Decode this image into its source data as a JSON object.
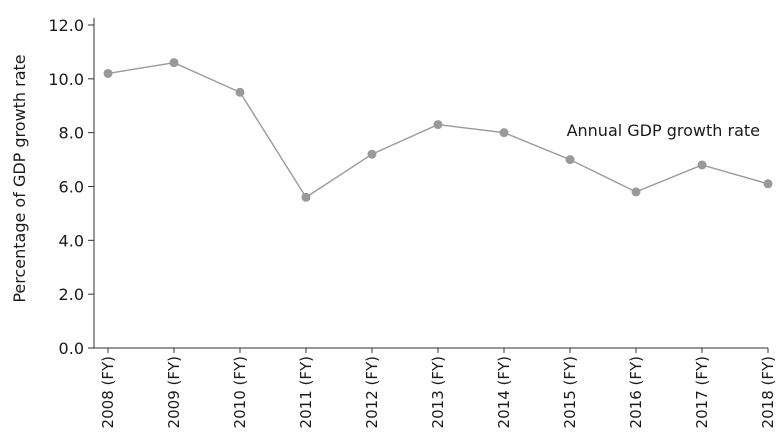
{
  "chart_data": {
    "type": "line",
    "title": "",
    "xlabel": "",
    "ylabel": "Percentage of GDP growth rate",
    "categories": [
      "2008 (FY)",
      "2009 (FY)",
      "2010 (FY)",
      "2011 (FY)",
      "2012 (FY)",
      "2013 (FY)",
      "2014 (FY)",
      "2015 (FY)",
      "2016 (FY)",
      "2017 (FY)",
      "2018 (FY)"
    ],
    "series": [
      {
        "name": "Annual GDP growth rate",
        "values": [
          10.2,
          10.6,
          9.5,
          5.6,
          7.2,
          8.3,
          8.0,
          7.0,
          5.8,
          6.8,
          6.1
        ],
        "color": "#999999"
      }
    ],
    "ylim": [
      0,
      12
    ],
    "yticks": [
      "0.0",
      "2.0",
      "4.0",
      "6.0",
      "8.0",
      "10.0",
      "12.0"
    ],
    "grid": false,
    "legend": "inline-label"
  }
}
